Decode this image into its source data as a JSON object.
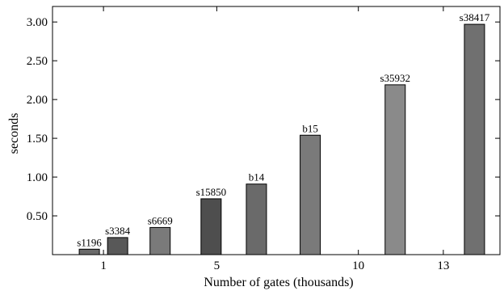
{
  "chart_data": {
    "type": "bar",
    "xlabel": "Number of gates (thousands)",
    "ylabel": "seconds",
    "ylim": [
      0,
      3.2
    ],
    "xlim": [
      -0.8,
      15
    ],
    "yticks": [
      0.5,
      1.0,
      1.5,
      2.0,
      2.5,
      3.0
    ],
    "ytick_labels": [
      "0.50",
      "1.00",
      "1.50",
      "2.00",
      "2.50",
      "3.00"
    ],
    "xticks": [
      1,
      5,
      10,
      13
    ],
    "xtick_labels": [
      "1",
      "5",
      "10",
      "13"
    ],
    "grid": false,
    "bars": [
      {
        "label": "s1196",
        "x": 0.5,
        "value": 0.07,
        "color": "#6a6a6a"
      },
      {
        "label": "s3384",
        "x": 1.5,
        "value": 0.22,
        "color": "#585858"
      },
      {
        "label": "s6669",
        "x": 3.0,
        "value": 0.35,
        "color": "#7a7a7a"
      },
      {
        "label": "s15850",
        "x": 4.8,
        "value": 0.72,
        "color": "#4e4e4e"
      },
      {
        "label": "b14",
        "x": 6.4,
        "value": 0.91,
        "color": "#6a6a6a"
      },
      {
        "label": "b15",
        "x": 8.3,
        "value": 1.54,
        "color": "#7a7a7a"
      },
      {
        "label": "s35932",
        "x": 11.3,
        "value": 2.19,
        "color": "#8a8a8a"
      },
      {
        "label": "s38417",
        "x": 14.1,
        "value": 2.97,
        "color": "#707070"
      }
    ]
  }
}
